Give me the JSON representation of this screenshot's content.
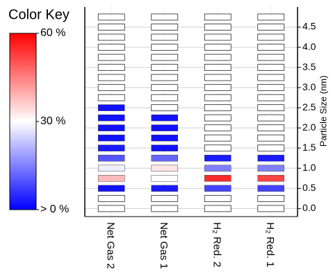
{
  "chart_data": {
    "type": "heatmap",
    "y_label": "Particle Size (nm)",
    "categories": [
      "Net Gas 2",
      "Net Gas 1",
      "H₂ Red. 2",
      "H₂ Red. 1"
    ],
    "y": [
      0,
      0.25,
      0.5,
      0.75,
      1,
      1.25,
      1.5,
      1.75,
      2,
      2.25,
      2.5,
      2.75,
      3,
      3.25,
      3.5,
      3.75,
      4,
      4.25,
      4.5,
      4.75
    ],
    "values": [
      [
        0,
        0,
        2,
        38,
        28,
        10,
        3,
        2,
        2,
        2,
        2,
        0,
        0,
        0,
        0,
        0,
        0,
        0,
        0,
        0
      ],
      [
        0,
        0,
        3,
        30,
        33,
        12,
        2,
        2,
        2,
        2,
        0,
        0,
        0,
        0,
        0,
        0,
        0,
        0,
        0,
        0
      ],
      [
        0,
        0,
        8,
        55,
        15,
        3,
        0,
        0,
        0,
        0,
        0,
        0,
        0,
        0,
        0,
        0,
        0,
        0,
        0,
        0
      ],
      [
        0,
        0,
        8,
        52,
        15,
        3,
        0,
        0,
        0,
        0,
        0,
        0,
        0,
        0,
        0,
        0,
        0,
        0,
        0,
        0
      ]
    ],
    "ylim": [
      -0.2,
      5.0
    ],
    "yticks": [
      {
        "value": 0,
        "label": "0.0"
      },
      0.5,
      {
        "value": 1,
        "label": "1.0"
      },
      1.5,
      {
        "value": 2,
        "label": "2.0"
      },
      2.5,
      {
        "value": 3,
        "label": "3.0"
      },
      3.5,
      {
        "value": 4,
        "label": "4.0"
      },
      4.5
    ],
    "grid": true,
    "color_key": {
      "title": "Color Key",
      "colormap": [
        "#0000ff",
        "#ffffff",
        "#ff0000"
      ],
      "clim": [
        0,
        60
      ],
      "ticks": [
        {
          "value": 60,
          "label": "60 %"
        },
        {
          "value": 30,
          "label": "30 %"
        },
        {
          "value": 0,
          "label": "> 0 %"
        }
      ]
    }
  }
}
